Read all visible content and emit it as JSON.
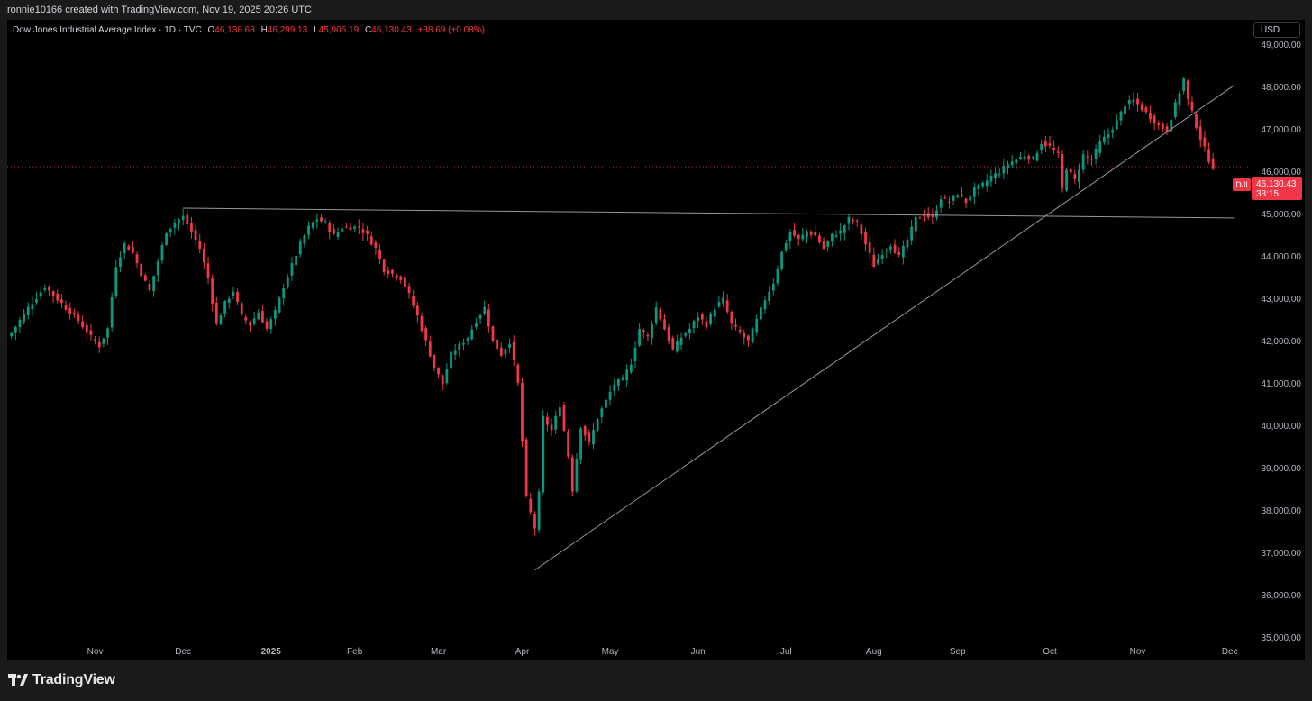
{
  "attribution": "ronnie10166 created with TradingView.com, Nov 19, 2025 20:26 UTC",
  "header": {
    "symbol": "Dow Jones Industrial Average Index · 1D · TVC",
    "open_label": "O",
    "open": "46,138.68",
    "high_label": "H",
    "high": "46,299.13",
    "low_label": "L",
    "low": "45,905.19",
    "close_label": "C",
    "close": "46,130.43",
    "change": "+38.69 (+0.08%)"
  },
  "currency": "USD",
  "last_price": {
    "symbol": "DJI",
    "price": "46,130.43",
    "countdown": "33:15"
  },
  "brand": "TradingView",
  "colors": {
    "up": "#089981",
    "down": "#f23645",
    "background": "#000000",
    "trendline": "#9598a1"
  },
  "chart_data": {
    "type": "candlestick",
    "y_scale": "linear",
    "ylim": [
      34700,
      49600
    ],
    "y_ticks": [
      "49,000.00",
      "48,000.00",
      "47,000.00",
      "46,000.00",
      "45,000.00",
      "44,000.00",
      "43,000.00",
      "42,000.00",
      "41,000.00",
      "40,000.00",
      "39,000.00",
      "38,000.00",
      "37,000.00",
      "36,000.00",
      "35,000.00"
    ],
    "y_tick_values": [
      49000,
      48000,
      47000,
      46000,
      45000,
      44000,
      43000,
      42000,
      41000,
      40000,
      39000,
      38000,
      37000,
      36000,
      35000
    ],
    "x_ticks": [
      "Nov",
      "Dec",
      "2025",
      "Feb",
      "Mar",
      "Apr",
      "May",
      "Jun",
      "Jul",
      "Aug",
      "Sep",
      "Oct",
      "Nov",
      "Dec"
    ],
    "x_tick_index": [
      20,
      41,
      62,
      82,
      102,
      122,
      143,
      164,
      185,
      206,
      226,
      248,
      269,
      291
    ],
    "grid": false,
    "close_path": [
      [
        0,
        42200
      ],
      [
        4,
        42800
      ],
      [
        8,
        43300
      ],
      [
        12,
        42900
      ],
      [
        16,
        42500
      ],
      [
        19,
        42100
      ],
      [
        21,
        41900
      ],
      [
        23,
        42300
      ],
      [
        25,
        43800
      ],
      [
        27,
        44300
      ],
      [
        29,
        44100
      ],
      [
        31,
        43600
      ],
      [
        33,
        43200
      ],
      [
        35,
        43900
      ],
      [
        37,
        44600
      ],
      [
        39,
        44800
      ],
      [
        41,
        44950
      ],
      [
        43,
        44600
      ],
      [
        45,
        44200
      ],
      [
        47,
        43500
      ],
      [
        49,
        42400
      ],
      [
        51,
        42900
      ],
      [
        53,
        43200
      ],
      [
        55,
        42600
      ],
      [
        57,
        42400
      ],
      [
        59,
        42700
      ],
      [
        61,
        42300
      ],
      [
        63,
        42700
      ],
      [
        65,
        43300
      ],
      [
        67,
        43800
      ],
      [
        69,
        44300
      ],
      [
        71,
        44700
      ],
      [
        73,
        44900
      ],
      [
        75,
        44800
      ],
      [
        77,
        44500
      ],
      [
        79,
        44700
      ],
      [
        81,
        44700
      ],
      [
        83,
        44700
      ],
      [
        85,
        44500
      ],
      [
        87,
        44200
      ],
      [
        89,
        43700
      ],
      [
        91,
        43600
      ],
      [
        93,
        43500
      ],
      [
        95,
        43100
      ],
      [
        97,
        42600
      ],
      [
        99,
        42000
      ],
      [
        101,
        41400
      ],
      [
        103,
        41000
      ],
      [
        105,
        41700
      ],
      [
        107,
        41900
      ],
      [
        109,
        42100
      ],
      [
        111,
        42500
      ],
      [
        113,
        42800
      ],
      [
        115,
        42000
      ],
      [
        117,
        41700
      ],
      [
        119,
        42000
      ],
      [
        121,
        41000
      ],
      [
        123,
        38300
      ],
      [
        125,
        37600
      ],
      [
        126,
        38400
      ],
      [
        127,
        40200
      ],
      [
        129,
        39900
      ],
      [
        131,
        40500
      ],
      [
        133,
        39300
      ],
      [
        134,
        38500
      ],
      [
        136,
        40000
      ],
      [
        138,
        39600
      ],
      [
        140,
        40200
      ],
      [
        142,
        40600
      ],
      [
        144,
        41000
      ],
      [
        146,
        41100
      ],
      [
        148,
        41500
      ],
      [
        150,
        42300
      ],
      [
        152,
        42100
      ],
      [
        154,
        42800
      ],
      [
        156,
        42300
      ],
      [
        158,
        41800
      ],
      [
        160,
        42100
      ],
      [
        162,
        42300
      ],
      [
        164,
        42600
      ],
      [
        166,
        42400
      ],
      [
        168,
        42800
      ],
      [
        170,
        43000
      ],
      [
        172,
        42400
      ],
      [
        174,
        42200
      ],
      [
        176,
        42000
      ],
      [
        178,
        42500
      ],
      [
        180,
        43000
      ],
      [
        182,
        43400
      ],
      [
        184,
        44100
      ],
      [
        186,
        44600
      ],
      [
        188,
        44400
      ],
      [
        190,
        44600
      ],
      [
        192,
        44500
      ],
      [
        194,
        44200
      ],
      [
        196,
        44500
      ],
      [
        198,
        44600
      ],
      [
        200,
        44900
      ],
      [
        202,
        44800
      ],
      [
        204,
        44300
      ],
      [
        206,
        43800
      ],
      [
        208,
        44100
      ],
      [
        210,
        44300
      ],
      [
        212,
        44000
      ],
      [
        214,
        44400
      ],
      [
        216,
        44900
      ],
      [
        218,
        45000
      ],
      [
        220,
        44900
      ],
      [
        222,
        45400
      ],
      [
        224,
        45300
      ],
      [
        226,
        45500
      ],
      [
        228,
        45300
      ],
      [
        230,
        45600
      ],
      [
        232,
        45700
      ],
      [
        234,
        45900
      ],
      [
        236,
        46000
      ],
      [
        238,
        46200
      ],
      [
        240,
        46300
      ],
      [
        242,
        46400
      ],
      [
        244,
        46300
      ],
      [
        246,
        46700
      ],
      [
        248,
        46600
      ],
      [
        250,
        46400
      ],
      [
        251,
        45600
      ],
      [
        252,
        46100
      ],
      [
        254,
        45800
      ],
      [
        256,
        46400
      ],
      [
        258,
        46300
      ],
      [
        260,
        46700
      ],
      [
        262,
        46900
      ],
      [
        264,
        47200
      ],
      [
        266,
        47600
      ],
      [
        268,
        47700
      ],
      [
        270,
        47500
      ],
      [
        272,
        47300
      ],
      [
        274,
        47100
      ],
      [
        276,
        47000
      ],
      [
        278,
        47600
      ],
      [
        280,
        48200
      ],
      [
        281,
        47700
      ],
      [
        283,
        47100
      ],
      [
        284,
        46800
      ],
      [
        286,
        46300
      ],
      [
        287,
        46130
      ]
    ],
    "trendlines": [
      {
        "from": [
          41,
          45150
        ],
        "to": [
          292,
          44920
        ]
      },
      {
        "from": [
          125,
          36600
        ],
        "to": [
          292,
          48050
        ]
      }
    ],
    "dotted_level": 46130.43
  }
}
